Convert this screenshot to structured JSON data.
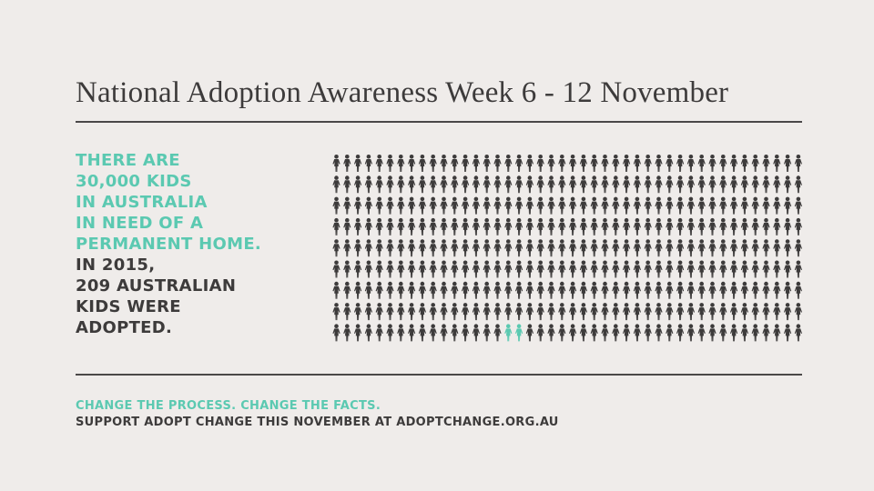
{
  "title": "National Adoption Awareness Week 6 - 12 November",
  "stat_lines": {
    "l1": "THERE ARE",
    "l2": "30,000 KIDS",
    "l3": "IN AUSTRALIA",
    "l4": "IN NEED OF A",
    "l5": "PERMANENT HOME.",
    "l6": "IN 2015,",
    "l7": "209 AUSTRALIAN",
    "l8": "KIDS WERE",
    "l9": "ADOPTED."
  },
  "pictogram": {
    "icon": "child-figure-icon",
    "rows": 9,
    "columns": 44,
    "highlighted": [
      {
        "row": 8,
        "column": 16
      },
      {
        "row": 8,
        "column": 17
      }
    ],
    "colors": {
      "default": "#3d3b3b",
      "highlight": "#5bc9b1"
    }
  },
  "footer": {
    "tagline": "CHANGE THE PROCESS. CHANGE THE FACTS.",
    "support": "SUPPORT ADOPT CHANGE THIS NOVEMBER AT ADOPTCHANGE.ORG.AU"
  },
  "colors": {
    "background": "#efecea",
    "accent": "#5bc9b1",
    "text": "#3d3b3b"
  }
}
